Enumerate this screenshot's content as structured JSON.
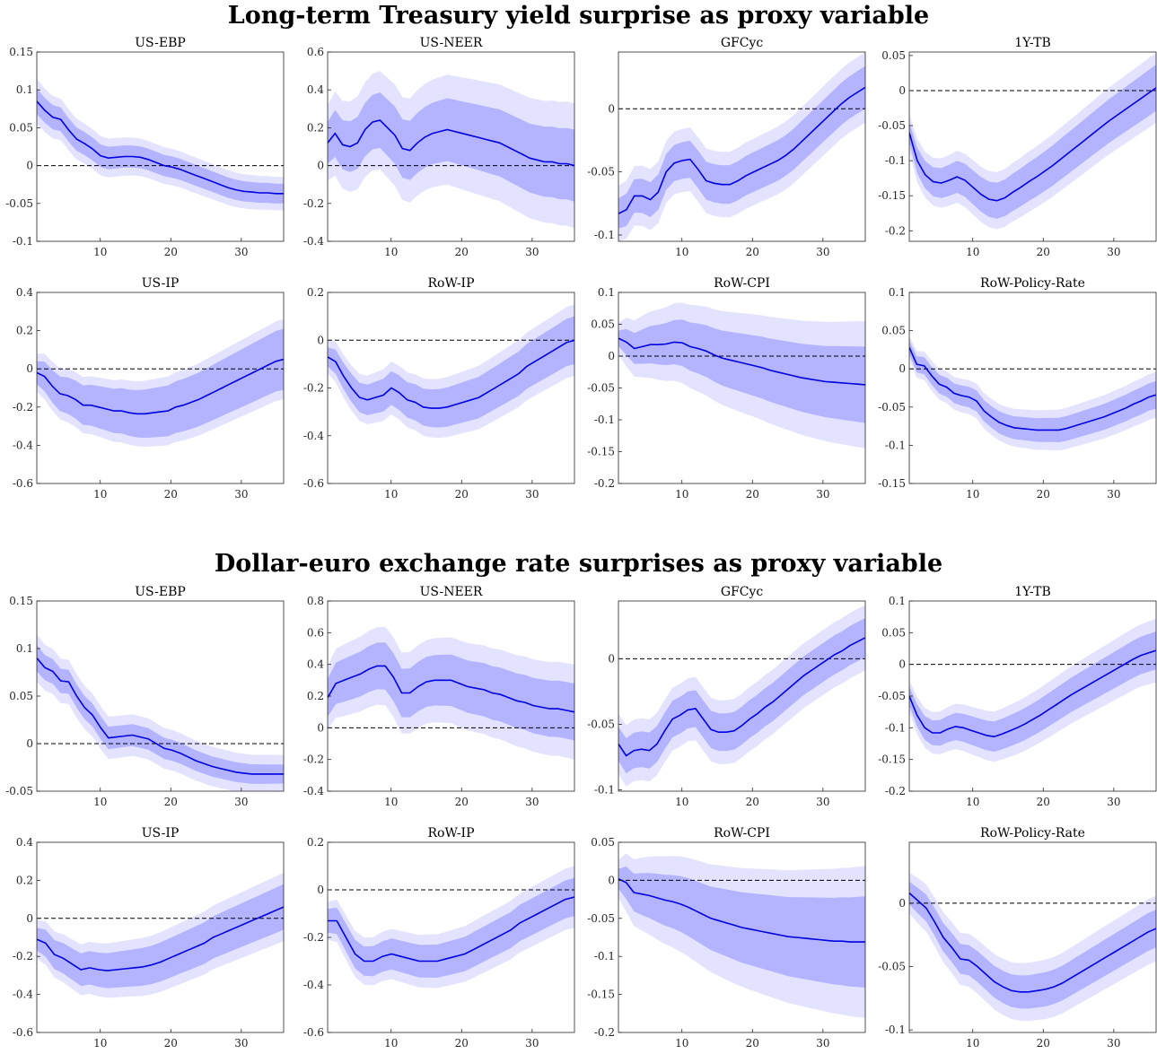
{
  "sections": [
    {
      "title": "Long-term Treasury yield surprise as proxy variable",
      "panels": [
        {
          "title": "US-EBP",
          "ylim": [
            -0.1,
            0.15
          ],
          "yticks": [
            "-0.1",
            "-0.05",
            "0",
            "0.05",
            "0.1",
            "0.15"
          ],
          "ytick_values": [
            -0.1,
            -0.05,
            0,
            0.05,
            0.1,
            0.15
          ],
          "median": [
            0.085,
            0.073,
            0.064,
            0.061,
            0.047,
            0.035,
            0.029,
            0.022,
            0.013,
            0.01,
            0.011,
            0.012,
            0.012,
            0.011,
            0.008,
            0.004,
            0.0,
            -0.002,
            -0.005,
            -0.009,
            -0.013,
            -0.017,
            -0.021,
            -0.025,
            -0.029,
            -0.032,
            -0.034,
            -0.035,
            -0.036,
            -0.036,
            -0.037,
            -0.037
          ],
          "band68": [
            0.017,
            0.013
          ],
          "band90": [
            0.03,
            0.022
          ]
        },
        {
          "title": "US-NEER",
          "ylim": [
            -0.4,
            0.6
          ],
          "yticks": [
            "-0.4",
            "-0.2",
            "0",
            "0.2",
            "0.4",
            "0.6"
          ],
          "ytick_values": [
            -0.4,
            -0.2,
            0,
            0.2,
            0.4,
            0.6
          ],
          "median": [
            0.12,
            0.17,
            0.11,
            0.1,
            0.12,
            0.19,
            0.23,
            0.24,
            0.2,
            0.16,
            0.09,
            0.08,
            0.12,
            0.15,
            0.17,
            0.18,
            0.19,
            0.18,
            0.17,
            0.16,
            0.15,
            0.14,
            0.13,
            0.12,
            0.1,
            0.08,
            0.06,
            0.04,
            0.03,
            0.02,
            0.02,
            0.01,
            0.01,
            0.0
          ],
          "band68": [
            0.11,
            0.19
          ],
          "band90": [
            0.2,
            0.33
          ]
        },
        {
          "title": "GFCyc",
          "ylim": [
            -0.105,
            0.045
          ],
          "yticks": [
            "-0.1",
            "-0.05",
            "0"
          ],
          "ytick_values": [
            -0.1,
            -0.05,
            0
          ],
          "median": [
            -0.083,
            -0.08,
            -0.069,
            -0.069,
            -0.072,
            -0.066,
            -0.05,
            -0.043,
            -0.041,
            -0.04,
            -0.048,
            -0.057,
            -0.059,
            -0.06,
            -0.06,
            -0.057,
            -0.053,
            -0.05,
            -0.047,
            -0.044,
            -0.041,
            -0.037,
            -0.032,
            -0.026,
            -0.02,
            -0.014,
            -0.008,
            -0.002,
            0.004,
            0.009,
            0.013,
            0.017
          ],
          "band68": [
            0.012,
            0.017
          ],
          "band90": [
            0.022,
            0.028
          ]
        },
        {
          "title": "1Y-TB",
          "ylim": [
            -0.215,
            0.055
          ],
          "yticks": [
            "-0.2",
            "-0.15",
            "-0.1",
            "-0.05",
            "0",
            "0.05"
          ],
          "ytick_values": [
            -0.2,
            -0.15,
            -0.1,
            -0.05,
            0,
            0.05
          ],
          "median": [
            -0.06,
            -0.1,
            -0.12,
            -0.13,
            -0.132,
            -0.128,
            -0.123,
            -0.128,
            -0.138,
            -0.148,
            -0.155,
            -0.157,
            -0.153,
            -0.145,
            -0.138,
            -0.13,
            -0.123,
            -0.115,
            -0.107,
            -0.098,
            -0.089,
            -0.08,
            -0.071,
            -0.062,
            -0.053,
            -0.044,
            -0.036,
            -0.028,
            -0.02,
            -0.012,
            -0.004,
            0.004
          ],
          "band68": [
            0.015,
            0.033
          ],
          "band90": [
            0.027,
            0.05
          ]
        },
        {
          "title": "US-IP",
          "ylim": [
            -0.6,
            0.4
          ],
          "yticks": [
            "-0.6",
            "-0.4",
            "-0.2",
            "0",
            "0.2",
            "0.4"
          ],
          "ytick_values": [
            -0.6,
            -0.4,
            -0.2,
            0,
            0.2,
            0.4
          ],
          "median": [
            -0.02,
            -0.04,
            -0.09,
            -0.13,
            -0.14,
            -0.16,
            -0.19,
            -0.19,
            -0.2,
            -0.21,
            -0.22,
            -0.22,
            -0.23,
            -0.235,
            -0.235,
            -0.23,
            -0.225,
            -0.22,
            -0.2,
            -0.19,
            -0.175,
            -0.16,
            -0.14,
            -0.12,
            -0.1,
            -0.08,
            -0.06,
            -0.04,
            -0.02,
            0.0,
            0.02,
            0.04,
            0.05
          ],
          "band68": [
            0.06,
            0.16
          ],
          "band90": [
            0.1,
            0.21
          ]
        },
        {
          "title": "RoW-IP",
          "ylim": [
            -0.6,
            0.2
          ],
          "yticks": [
            "-0.6",
            "-0.4",
            "-0.2",
            "0",
            "0.2"
          ],
          "ytick_values": [
            -0.6,
            -0.4,
            -0.2,
            0,
            0.2
          ],
          "median": [
            -0.07,
            -0.09,
            -0.15,
            -0.2,
            -0.24,
            -0.25,
            -0.24,
            -0.23,
            -0.2,
            -0.22,
            -0.25,
            -0.26,
            -0.28,
            -0.285,
            -0.285,
            -0.28,
            -0.27,
            -0.26,
            -0.25,
            -0.24,
            -0.22,
            -0.2,
            -0.18,
            -0.16,
            -0.14,
            -0.11,
            -0.09,
            -0.07,
            -0.05,
            -0.03,
            -0.01,
            0.0
          ],
          "band68": [
            0.04,
            0.1
          ],
          "band90": [
            0.07,
            0.15
          ]
        },
        {
          "title": "RoW-CPI",
          "ylim": [
            -0.2,
            0.1
          ],
          "yticks": [
            "-0.2",
            "-0.15",
            "-0.1",
            "-0.05",
            "0",
            "0.05",
            "0.1"
          ],
          "ytick_values": [
            -0.2,
            -0.15,
            -0.1,
            -0.05,
            0,
            0.05,
            0.1
          ],
          "median": [
            0.028,
            0.022,
            0.012,
            0.015,
            0.018,
            0.018,
            0.019,
            0.022,
            0.021,
            0.015,
            0.012,
            0.008,
            0.002,
            -0.003,
            -0.006,
            -0.009,
            -0.012,
            -0.015,
            -0.018,
            -0.022,
            -0.025,
            -0.028,
            -0.031,
            -0.034,
            -0.036,
            -0.038,
            -0.04,
            -0.041,
            -0.042,
            -0.043,
            -0.044,
            -0.045
          ],
          "band68": [
            0.012,
            0.06
          ],
          "band90": [
            0.025,
            0.1
          ]
        },
        {
          "title": "RoW-Policy-Rate",
          "ylim": [
            -0.15,
            0.1
          ],
          "yticks": [
            "-0.15",
            "-0.1",
            "-0.05",
            "0",
            "0.05",
            "0.1"
          ],
          "ytick_values": [
            -0.15,
            -0.1,
            -0.05,
            0,
            0.05,
            0.1
          ],
          "median": [
            0.028,
            0.006,
            0.004,
            -0.009,
            -0.02,
            -0.024,
            -0.032,
            -0.035,
            -0.037,
            -0.042,
            -0.055,
            -0.063,
            -0.07,
            -0.074,
            -0.077,
            -0.078,
            -0.079,
            -0.08,
            -0.08,
            -0.08,
            -0.08,
            -0.078,
            -0.075,
            -0.072,
            -0.069,
            -0.066,
            -0.063,
            -0.059,
            -0.055,
            -0.051,
            -0.046,
            -0.042,
            -0.037,
            -0.034
          ],
          "band68": [
            0.009,
            0.018
          ],
          "band90": [
            0.015,
            0.03
          ]
        }
      ]
    },
    {
      "title": "Dollar-euro exchange rate surprises as proxy variable",
      "panels": [
        {
          "title": "US-EBP",
          "ylim": [
            -0.05,
            0.15
          ],
          "yticks": [
            "-0.05",
            "0",
            "0.05",
            "0.1",
            "0.15"
          ],
          "ytick_values": [
            -0.05,
            0,
            0.05,
            0.1,
            0.15
          ],
          "median": [
            0.09,
            0.08,
            0.076,
            0.066,
            0.065,
            0.05,
            0.038,
            0.03,
            0.017,
            0.006,
            0.007,
            0.008,
            0.009,
            0.007,
            0.005,
            0.0,
            -0.005,
            -0.007,
            -0.01,
            -0.014,
            -0.018,
            -0.021,
            -0.024,
            -0.026,
            -0.028,
            -0.03,
            -0.031,
            -0.032,
            -0.032,
            -0.032,
            -0.032,
            -0.032
          ],
          "band68": [
            0.014,
            0.01
          ],
          "band90": [
            0.025,
            0.02
          ]
        },
        {
          "title": "US-NEER",
          "ylim": [
            -0.4,
            0.8
          ],
          "yticks": [
            "-0.4",
            "-0.2",
            "0",
            "0.2",
            "0.4",
            "0.6",
            "0.8"
          ],
          "ytick_values": [
            -0.4,
            -0.2,
            0,
            0.2,
            0.4,
            0.6,
            0.8
          ],
          "median": [
            0.19,
            0.28,
            0.3,
            0.32,
            0.34,
            0.37,
            0.39,
            0.39,
            0.32,
            0.22,
            0.22,
            0.26,
            0.29,
            0.3,
            0.3,
            0.3,
            0.28,
            0.26,
            0.25,
            0.24,
            0.22,
            0.21,
            0.19,
            0.17,
            0.16,
            0.14,
            0.13,
            0.12,
            0.12,
            0.11,
            0.1
          ],
          "band68": [
            0.12,
            0.18
          ],
          "band90": [
            0.2,
            0.3
          ]
        },
        {
          "title": "GFCyc",
          "ylim": [
            -0.101,
            0.044
          ],
          "yticks": [
            "-0.1",
            "-0.05",
            "0"
          ],
          "ytick_values": [
            -0.1,
            -0.05,
            0
          ],
          "median": [
            -0.065,
            -0.074,
            -0.07,
            -0.069,
            -0.07,
            -0.065,
            -0.055,
            -0.046,
            -0.043,
            -0.039,
            -0.038,
            -0.046,
            -0.054,
            -0.056,
            -0.056,
            -0.055,
            -0.051,
            -0.046,
            -0.042,
            -0.037,
            -0.033,
            -0.028,
            -0.023,
            -0.018,
            -0.013,
            -0.009,
            -0.005,
            -0.001,
            0.003,
            0.006,
            0.01,
            0.013,
            0.016
          ],
          "band68": [
            0.013,
            0.015
          ],
          "band90": [
            0.023,
            0.025
          ]
        },
        {
          "title": "1Y-TB",
          "ylim": [
            -0.2,
            0.1
          ],
          "yticks": [
            "-0.2",
            "-0.15",
            "-0.1",
            "-0.05",
            "0",
            "0.05",
            "0.1"
          ],
          "ytick_values": [
            -0.2,
            -0.15,
            -0.1,
            -0.05,
            0,
            0.05,
            0.1
          ],
          "median": [
            -0.05,
            -0.08,
            -0.1,
            -0.108,
            -0.108,
            -0.102,
            -0.098,
            -0.1,
            -0.104,
            -0.108,
            -0.112,
            -0.114,
            -0.11,
            -0.105,
            -0.1,
            -0.094,
            -0.087,
            -0.08,
            -0.072,
            -0.064,
            -0.056,
            -0.048,
            -0.041,
            -0.034,
            -0.027,
            -0.02,
            -0.013,
            -0.006,
            0.001,
            0.008,
            0.014,
            0.018,
            0.022
          ],
          "band68": [
            0.015,
            0.03
          ],
          "band90": [
            0.025,
            0.05
          ]
        },
        {
          "title": "US-IP",
          "ylim": [
            -0.6,
            0.4
          ],
          "yticks": [
            "-0.6",
            "-0.4",
            "-0.2",
            "0",
            "0.2",
            "0.4"
          ],
          "ytick_values": [
            -0.6,
            -0.4,
            -0.2,
            0,
            0.2,
            0.4
          ],
          "median": [
            -0.11,
            -0.13,
            -0.19,
            -0.21,
            -0.24,
            -0.27,
            -0.26,
            -0.27,
            -0.275,
            -0.27,
            -0.265,
            -0.26,
            -0.255,
            -0.245,
            -0.23,
            -0.21,
            -0.19,
            -0.17,
            -0.15,
            -0.13,
            -0.1,
            -0.08,
            -0.06,
            -0.04,
            -0.02,
            0.0,
            0.02,
            0.04,
            0.06
          ],
          "band68": [
            0.06,
            0.12
          ],
          "band90": [
            0.1,
            0.18
          ]
        },
        {
          "title": "RoW-IP",
          "ylim": [
            -0.6,
            0.2
          ],
          "yticks": [
            "-0.6",
            "-0.4",
            "-0.2",
            "0",
            "0.2"
          ],
          "ytick_values": [
            -0.6,
            -0.4,
            -0.2,
            0,
            0.2
          ],
          "median": [
            -0.13,
            -0.13,
            -0.2,
            -0.27,
            -0.3,
            -0.3,
            -0.28,
            -0.27,
            -0.28,
            -0.29,
            -0.3,
            -0.3,
            -0.3,
            -0.29,
            -0.28,
            -0.27,
            -0.25,
            -0.23,
            -0.21,
            -0.19,
            -0.17,
            -0.14,
            -0.12,
            -0.1,
            -0.08,
            -0.06,
            -0.04,
            -0.03
          ],
          "band68": [
            0.05,
            0.08
          ],
          "band90": [
            0.08,
            0.13
          ]
        },
        {
          "title": "RoW-CPI",
          "ylim": [
            -0.2,
            0.05
          ],
          "yticks": [
            "-0.2",
            "-0.15",
            "-0.1",
            "-0.05",
            "0",
            "0.05"
          ],
          "ytick_values": [
            -0.2,
            -0.15,
            -0.1,
            -0.05,
            0,
            0.05
          ],
          "median": [
            0.002,
            -0.003,
            -0.016,
            -0.018,
            -0.02,
            -0.023,
            -0.026,
            -0.028,
            -0.031,
            -0.035,
            -0.04,
            -0.045,
            -0.05,
            -0.053,
            -0.056,
            -0.059,
            -0.062,
            -0.064,
            -0.066,
            -0.068,
            -0.07,
            -0.072,
            -0.074,
            -0.075,
            -0.076,
            -0.077,
            -0.078,
            -0.079,
            -0.08,
            -0.08,
            -0.081,
            -0.081,
            -0.081
          ],
          "band68": [
            0.013,
            0.06
          ],
          "band90": [
            0.025,
            0.1
          ]
        },
        {
          "title": "RoW-Policy-Rate",
          "ylim": [
            -0.102,
            0.048
          ],
          "yticks": [
            "-0.1",
            "-0.05",
            "0"
          ],
          "ytick_values": [
            -0.1,
            -0.05,
            0
          ],
          "median": [
            0.008,
            0.002,
            -0.004,
            -0.015,
            -0.027,
            -0.035,
            -0.044,
            -0.045,
            -0.05,
            -0.056,
            -0.062,
            -0.066,
            -0.069,
            -0.07,
            -0.07,
            -0.069,
            -0.068,
            -0.066,
            -0.063,
            -0.059,
            -0.055,
            -0.051,
            -0.047,
            -0.043,
            -0.039,
            -0.035,
            -0.031,
            -0.027,
            -0.023,
            -0.02
          ],
          "band68": [
            0.009,
            0.015
          ],
          "band90": [
            0.016,
            0.026
          ]
        }
      ]
    }
  ],
  "xticks": [
    10,
    20,
    30
  ],
  "xlim": [
    1,
    36
  ],
  "colors": {
    "median": "#0000e0",
    "band68": "#b3b3ff",
    "band90": "#e3e3ff",
    "zero_line": "#000000"
  },
  "chart_data": {
    "type": "line",
    "grid": false,
    "xlabel": "",
    "ylabel": ""
  }
}
